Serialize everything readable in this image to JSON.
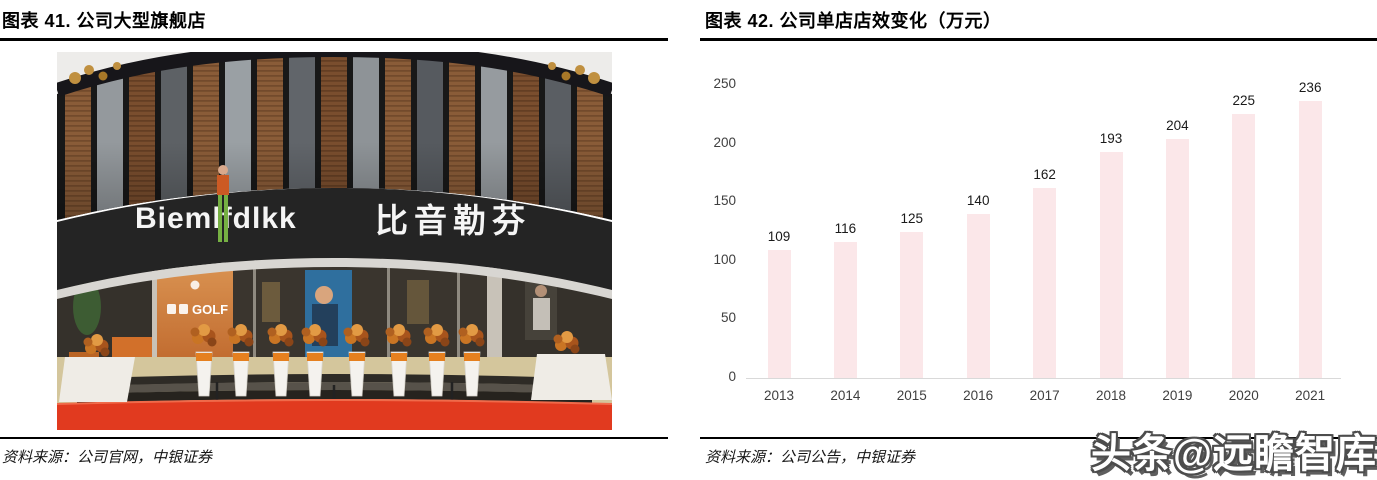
{
  "figure_left": {
    "title": "图表 41. 公司大型旗舰店",
    "source": "资料来源：公司官网，中银证券",
    "photo": {
      "sign_latin": "Biemlfdlkk",
      "sign_cn": "比音勒芬",
      "poster_text": "GOLF"
    }
  },
  "figure_right": {
    "title": "图表 42. 公司单店店效变化（万元）",
    "source": "资料来源：公司公告，中银证券"
  },
  "watermark": {
    "text": "头条@远瞻智库",
    "color": "#4c4c4c"
  },
  "chart_data": {
    "type": "bar",
    "title": "公司单店店效变化（万元）",
    "categories": [
      "2013",
      "2014",
      "2015",
      "2016",
      "2017",
      "2018",
      "2019",
      "2020",
      "2021"
    ],
    "values": [
      109,
      116,
      125,
      140,
      162,
      193,
      204,
      225,
      236
    ],
    "xlabel": "",
    "ylabel": "",
    "ylim": [
      0,
      250
    ],
    "yticks": [
      0,
      50,
      100,
      150,
      200,
      250
    ],
    "grid": false,
    "legend": "none",
    "value_labels": true,
    "bar_color": "#fbe7e9",
    "axis_line_color": "#d9d9d9",
    "tick_label_color": "#3f3f3f",
    "value_label_color": "#1a1a1a"
  }
}
